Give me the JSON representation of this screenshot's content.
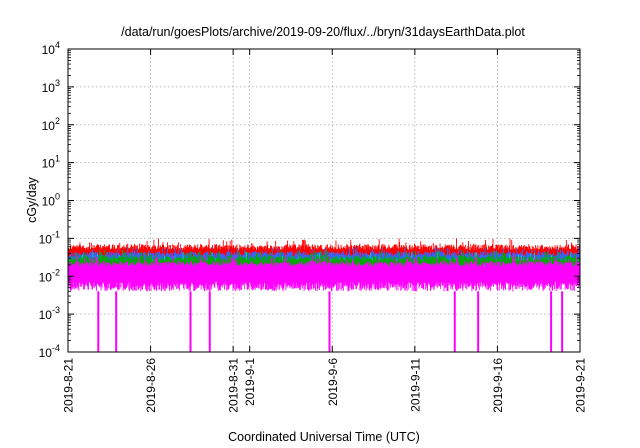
{
  "chart_data": {
    "type": "line",
    "title": "/data/run/goesPlots/archive/2019-09-20/flux/../bryn/31daysEarthData.plot",
    "xlabel": "Coordinated Universal Time (UTC)",
    "ylabel": "cGy/day",
    "y_scale": "log",
    "ylim": [
      0.0001,
      10000
    ],
    "xlim": [
      "2019-08-21",
      "2019-09-21"
    ],
    "grid": true,
    "y_ticks": [
      {
        "value": 0.0001,
        "base": "10",
        "exp": "-4"
      },
      {
        "value": 0.001,
        "base": "10",
        "exp": "-3"
      },
      {
        "value": 0.01,
        "base": "10",
        "exp": "-2"
      },
      {
        "value": 0.1,
        "base": "10",
        "exp": "-1"
      },
      {
        "value": 1,
        "base": "10",
        "exp": "0"
      },
      {
        "value": 10,
        "base": "10",
        "exp": "1"
      },
      {
        "value": 100,
        "base": "10",
        "exp": "2"
      },
      {
        "value": 1000,
        "base": "10",
        "exp": "3"
      },
      {
        "value": 10000,
        "base": "10",
        "exp": "4"
      }
    ],
    "x_ticks": [
      {
        "date": "2019-08-21",
        "label": "2019-8-21"
      },
      {
        "date": "2019-08-26",
        "label": "2019-8-26"
      },
      {
        "date": "2019-08-31",
        "label": "2019-8-31"
      },
      {
        "date": "2019-09-01",
        "label": "2019-9-1"
      },
      {
        "date": "2019-09-06",
        "label": "2019-9-6"
      },
      {
        "date": "2019-09-11",
        "label": "2019-9-11"
      },
      {
        "date": "2019-09-16",
        "label": "2019-9-16"
      },
      {
        "date": "2019-09-21",
        "label": "2019-9-21"
      }
    ],
    "series": [
      {
        "color": "#ff0000",
        "typical_low": 0.02,
        "typical_high": 0.07,
        "peak": 0.1
      },
      {
        "color": "#00aa00",
        "typical_low": 0.012,
        "typical_high": 0.035,
        "peak": 0.05
      },
      {
        "color": "#3366ff",
        "typical_low": 0.015,
        "typical_high": 0.045,
        "peak": 0.06
      },
      {
        "color": "#00cccc",
        "typical_low": 0.01,
        "typical_high": 0.03,
        "peak": 0.045
      },
      {
        "color": "#ff00ff",
        "typical_low": 0.004,
        "typical_high": 0.025,
        "peak": 0.035
      }
    ],
    "magenta_dropouts": [
      "2019-08-22T20:00",
      "2019-08-23T22:00",
      "2019-08-28T10:00",
      "2019-08-29T14:00",
      "2019-09-05T20:00",
      "2019-09-13T10:00",
      "2019-09-14T20:00",
      "2019-09-19T06:00",
      "2019-09-19T22:00"
    ]
  }
}
